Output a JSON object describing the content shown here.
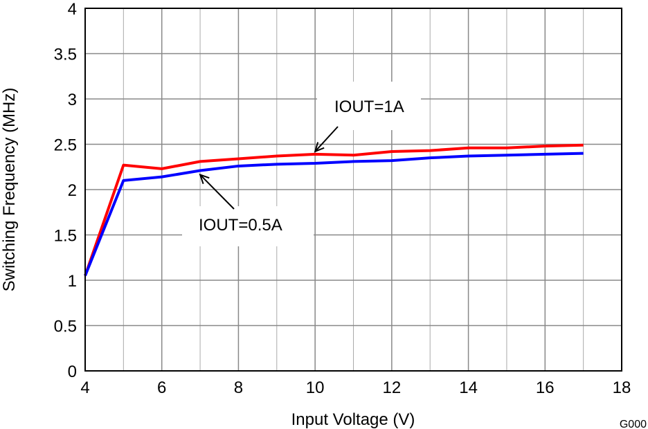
{
  "chart_data": {
    "type": "line",
    "xlabel": "Input Voltage (V)",
    "ylabel": "Switching Frequency (MHz)",
    "xlim": [
      4,
      18
    ],
    "ylim": [
      0,
      4
    ],
    "xticks": [
      4,
      6,
      8,
      10,
      12,
      14,
      16,
      18
    ],
    "yticks": [
      0,
      0.5,
      1,
      1.5,
      2,
      2.5,
      3,
      3.5,
      4
    ],
    "grid": true,
    "x": [
      4,
      5,
      6,
      7,
      8,
      9,
      10,
      11,
      12,
      13,
      14,
      15,
      16,
      17
    ],
    "series": [
      {
        "name": "IOUT=1A",
        "color": "#ff0000",
        "values": [
          1.05,
          2.27,
          2.23,
          2.31,
          2.34,
          2.37,
          2.39,
          2.38,
          2.42,
          2.43,
          2.46,
          2.46,
          2.48,
          2.49
        ]
      },
      {
        "name": "IOUT=0.5A",
        "color": "#0000ff",
        "values": [
          1.05,
          2.1,
          2.14,
          2.21,
          2.26,
          2.28,
          2.29,
          2.31,
          2.32,
          2.35,
          2.37,
          2.38,
          2.39,
          2.4
        ]
      }
    ],
    "annotations": [
      {
        "text": "IOUT=1A",
        "x": 10,
        "y": 2.39
      },
      {
        "text": "IOUT=0.5A",
        "x": 7,
        "y": 2.21
      }
    ],
    "footnote": "G000"
  }
}
